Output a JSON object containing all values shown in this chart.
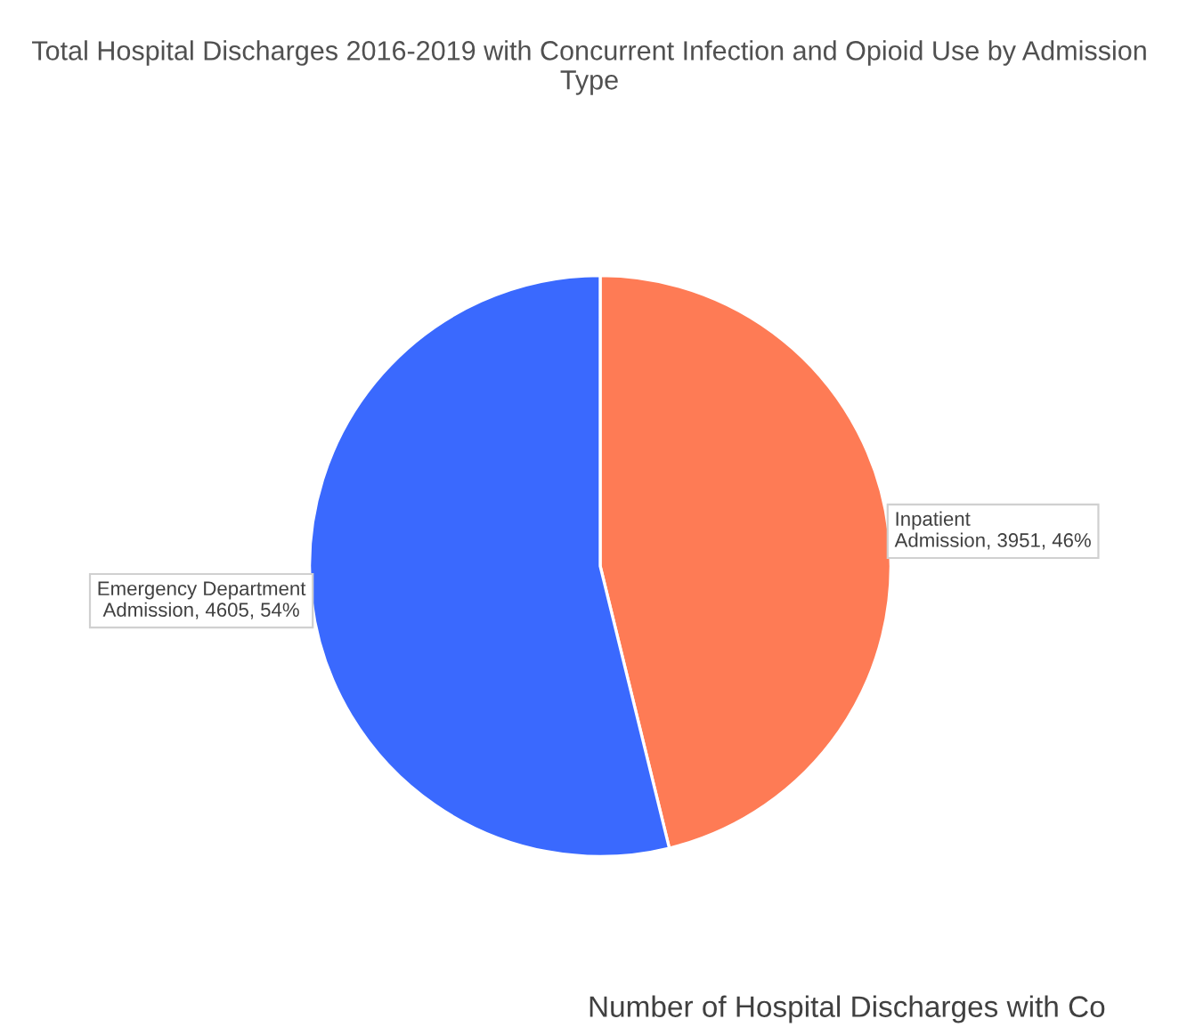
{
  "chart_data": {
    "type": "pie",
    "title": "Total Hospital Discharges 2016-2019 with Concurrent Infection and Opioid Use by Admission Type",
    "categories": [
      "Inpatient Admission",
      "Emergency Department Admission"
    ],
    "values": [
      3951,
      4605
    ],
    "value_labels": [
      "3951, 46%",
      "4605, 54%"
    ],
    "colors": [
      "#fe7b55",
      "#3a69fe"
    ],
    "legend": false,
    "annotations": [
      "Number of Hospital Discharges with Co"
    ]
  }
}
